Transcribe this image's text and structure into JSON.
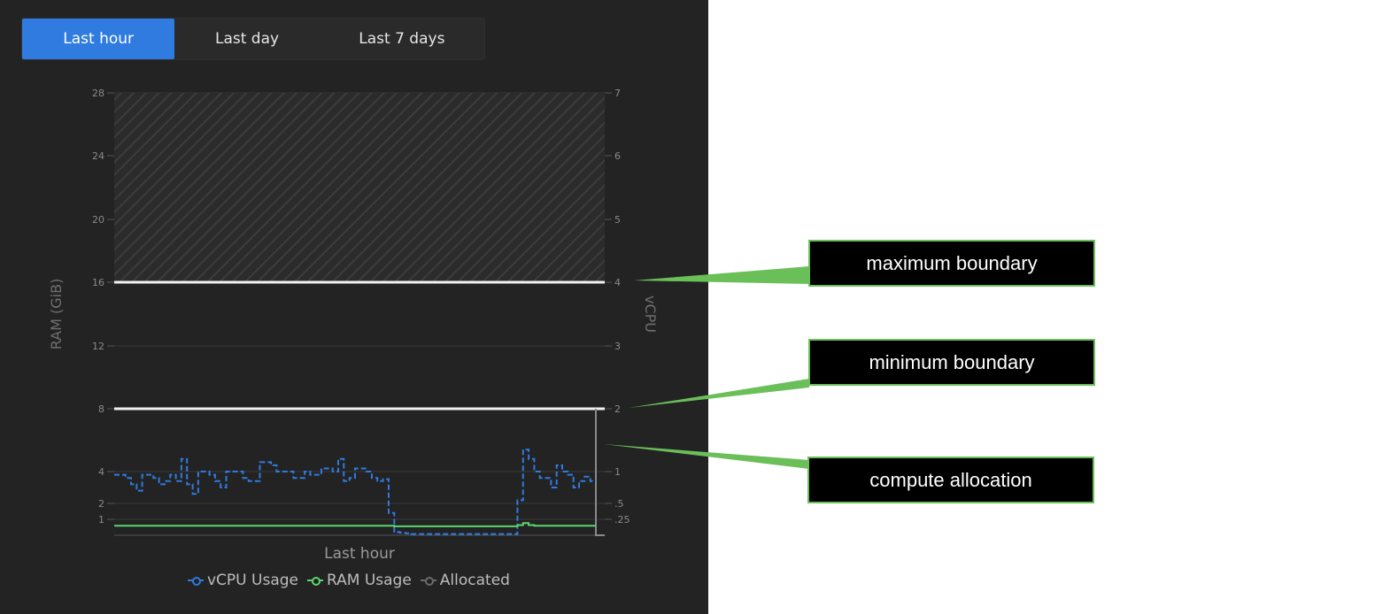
{
  "tabs": [
    {
      "label": "Last hour",
      "active": true
    },
    {
      "label": "Last day",
      "active": false
    },
    {
      "label": "Last 7 days",
      "active": false
    }
  ],
  "colors": {
    "panel_bg": "#232323",
    "active_tab": "#2f7be0",
    "vcpu": "#2f7be0",
    "ram": "#5bd66c",
    "allocated": "#6a6a6a",
    "boundary": "#f2f2f2",
    "callout_border": "#6bbf59"
  },
  "chart_data": {
    "type": "line",
    "xlabel": "Last hour",
    "ylabel_left": "RAM (GiB)",
    "ylabel_right": "vCPU",
    "left_ticks": [
      "28",
      "24",
      "20",
      "16",
      "12",
      "8",
      "4",
      "2",
      "1"
    ],
    "right_ticks": [
      "7",
      "6",
      "5",
      "4",
      "3",
      "2",
      "1",
      ".5",
      ".25"
    ],
    "scale": "piecewise",
    "ylim_vcpu": [
      0,
      7
    ],
    "hatched_region_vcpu": [
      4,
      7
    ],
    "max_boundary_vcpu": 4,
    "min_boundary_vcpu": 2,
    "allocated_vcpu": 1.5,
    "grid": true,
    "legend": "bottom",
    "series": [
      {
        "name": "vCPU Usage",
        "style": "dashed-step",
        "values": [
          0.95,
          0.95,
          0.9,
          0.8,
          0.7,
          0.95,
          0.95,
          0.9,
          0.8,
          0.85,
          0.95,
          0.85,
          1.2,
          0.8,
          0.65,
          1.0,
          1.0,
          0.95,
          0.85,
          0.75,
          1.0,
          1.0,
          1.0,
          0.9,
          0.85,
          0.85,
          1.15,
          1.15,
          1.1,
          1.0,
          1.0,
          1.0,
          0.9,
          0.9,
          1.0,
          0.95,
          0.95,
          1.05,
          1.05,
          1.0,
          1.2,
          0.85,
          0.9,
          1.05,
          1.05,
          1.0,
          0.9,
          0.85,
          0.88,
          0.35,
          0.05,
          0.04,
          0.03,
          0.02,
          0.02,
          0.02,
          0.02,
          0.02,
          0.02,
          0.02,
          0.02,
          0.02,
          0.02,
          0.02,
          0.02,
          0.02,
          0.02,
          0.02,
          0.02,
          0.02,
          0.02,
          0.02,
          0.55,
          1.35,
          1.2,
          1.0,
          0.9,
          0.9,
          0.75,
          1.1,
          1.0,
          0.95,
          0.75,
          0.85,
          0.92,
          0.85
        ]
      },
      {
        "name": "RAM Usage",
        "style": "solid",
        "values": [
          0.15,
          0.15,
          0.15,
          0.15,
          0.15,
          0.15,
          0.15,
          0.15,
          0.15,
          0.15,
          0.15,
          0.15,
          0.15,
          0.15,
          0.15,
          0.15,
          0.15,
          0.15,
          0.15,
          0.15,
          0.15,
          0.15,
          0.15,
          0.15,
          0.15,
          0.15,
          0.15,
          0.15,
          0.15,
          0.15,
          0.15,
          0.15,
          0.15,
          0.15,
          0.15,
          0.15,
          0.15,
          0.15,
          0.15,
          0.15,
          0.15,
          0.15,
          0.15,
          0.15,
          0.15,
          0.15,
          0.15,
          0.15,
          0.15,
          0.15,
          0.14,
          0.14,
          0.14,
          0.14,
          0.14,
          0.14,
          0.14,
          0.14,
          0.14,
          0.14,
          0.14,
          0.14,
          0.14,
          0.14,
          0.14,
          0.14,
          0.14,
          0.14,
          0.14,
          0.14,
          0.14,
          0.14,
          0.16,
          0.19,
          0.16,
          0.15,
          0.15,
          0.15,
          0.15,
          0.15,
          0.15,
          0.15,
          0.15,
          0.15,
          0.15,
          0.15
        ]
      }
    ],
    "legend_entries": [
      "vCPU Usage",
      "RAM Usage",
      "Allocated"
    ]
  },
  "callouts": [
    {
      "label": "maximum boundary"
    },
    {
      "label": "minimum boundary"
    },
    {
      "label": "compute allocation"
    }
  ]
}
